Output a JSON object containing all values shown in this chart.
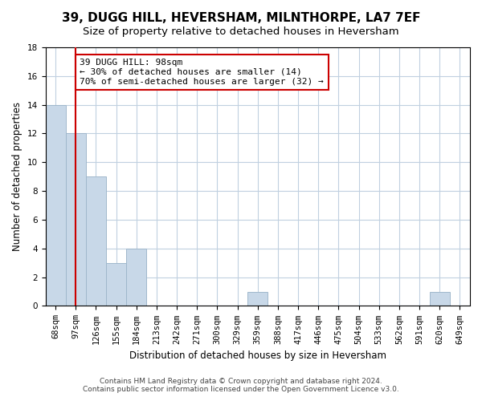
{
  "title": "39, DUGG HILL, HEVERSHAM, MILNTHORPE, LA7 7EF",
  "subtitle": "Size of property relative to detached houses in Heversham",
  "xlabel": "Distribution of detached houses by size in Heversham",
  "ylabel": "Number of detached properties",
  "bar_labels": [
    "68sqm",
    "97sqm",
    "126sqm",
    "155sqm",
    "184sqm",
    "213sqm",
    "242sqm",
    "271sqm",
    "300sqm",
    "329sqm",
    "359sqm",
    "388sqm",
    "417sqm",
    "446sqm",
    "475sqm",
    "504sqm",
    "533sqm",
    "562sqm",
    "591sqm",
    "620sqm",
    "649sqm"
  ],
  "bar_values": [
    14,
    12,
    9,
    3,
    4,
    0,
    0,
    0,
    0,
    0,
    1,
    0,
    0,
    0,
    0,
    0,
    0,
    0,
    0,
    1,
    0
  ],
  "bar_color": "#c8d8e8",
  "bar_edge_color": "#a0b8cc",
  "reference_line_x": 1,
  "reference_line_color": "#cc0000",
  "annotation_title": "39 DUGG HILL: 98sqm",
  "annotation_line1": "← 30% of detached houses are smaller (14)",
  "annotation_line2": "70% of semi-detached houses are larger (32) →",
  "annotation_box_color": "#ffffff",
  "annotation_box_edge_color": "#cc0000",
  "ylim": [
    0,
    18
  ],
  "yticks": [
    0,
    2,
    4,
    6,
    8,
    10,
    12,
    14,
    16,
    18
  ],
  "footer_line1": "Contains HM Land Registry data © Crown copyright and database right 2024.",
  "footer_line2": "Contains public sector information licensed under the Open Government Licence v3.0.",
  "bg_color": "#ffffff",
  "grid_color": "#c0d0e0",
  "title_fontsize": 11,
  "subtitle_fontsize": 9.5,
  "axis_label_fontsize": 8.5,
  "tick_fontsize": 7.5,
  "annotation_fontsize": 8,
  "footer_fontsize": 6.5
}
